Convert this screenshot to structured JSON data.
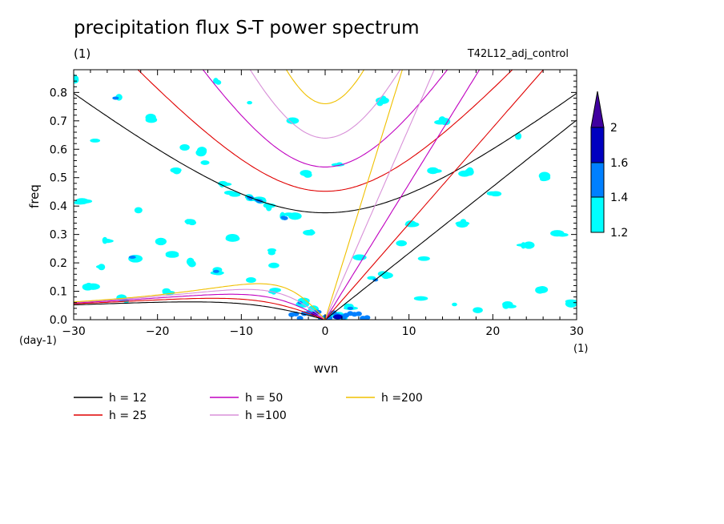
{
  "chart_data": {
    "type": "contour",
    "title": "precipitation flux S-T power spectrum",
    "subtitle": "(1)",
    "run_name": "T42L12_adj_control",
    "xlabel": "wvn",
    "ylabel": "freq",
    "x_unit": "(1)",
    "y_unit": "(day-1)",
    "xlim": [
      -30,
      30
    ],
    "ylim": [
      0,
      0.88
    ],
    "x_ticks": [
      "-30",
      "-20",
      "-10",
      "0",
      "10",
      "20",
      "30"
    ],
    "y_ticks": [
      "0.0",
      "0.1",
      "0.2",
      "0.3",
      "0.4",
      "0.5",
      "0.6",
      "0.7",
      "0.8"
    ],
    "colorbar": {
      "levels": [
        "1.2",
        "1.4",
        "1.6",
        "2"
      ],
      "colors": [
        "#00ffff",
        "#0080ff",
        "#0000c0",
        "#4000a0"
      ]
    },
    "series": [
      {
        "name": "h = 12",
        "h": 12,
        "color": "#000000"
      },
      {
        "name": "h = 25",
        "h": 25,
        "color": "#e00000"
      },
      {
        "name": "h = 50",
        "h": 50,
        "color": "#c000c0"
      },
      {
        "name": "h =100",
        "h": 100,
        "color": "#d890d8"
      },
      {
        "name": "h =200",
        "h": 200,
        "color": "#f0c000"
      }
    ],
    "legend_position": "bottom"
  }
}
